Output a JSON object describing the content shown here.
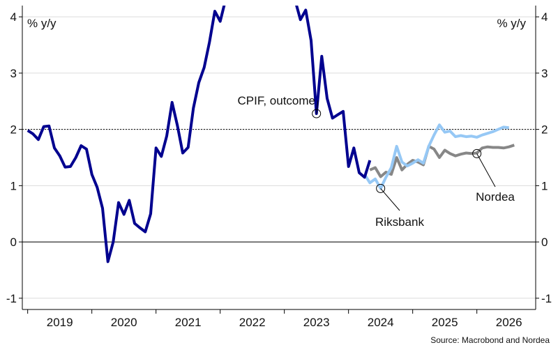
{
  "chart_data": {
    "type": "line",
    "ylabel_left": "% y/y",
    "ylabel_right": "% y/y",
    "ylim": [
      -1.2,
      4.2
    ],
    "yticks": [
      -1,
      0,
      1,
      2,
      3,
      4
    ],
    "ytick_labels": [
      "-1",
      "0",
      "1",
      "2",
      "3",
      "4"
    ],
    "xlim": [
      "2018-12",
      "2026-12"
    ],
    "xtick_labels": [
      "2019",
      "2020",
      "2021",
      "2022",
      "2023",
      "2024",
      "2025",
      "2026"
    ],
    "reference_line": 2,
    "source": "Source: Macrobond and Nordea",
    "annotations": {
      "outcome": "CPIF, outcome",
      "riksbank": "Riksbank",
      "nordea": "Nordea"
    },
    "series": [
      {
        "name": "CPIF, outcome",
        "color": "#00008f",
        "points": [
          [
            "2019-01",
            1.98
          ],
          [
            "2019-02",
            1.92
          ],
          [
            "2019-03",
            1.82
          ],
          [
            "2019-04",
            2.05
          ],
          [
            "2019-05",
            2.06
          ],
          [
            "2019-06",
            1.67
          ],
          [
            "2019-07",
            1.53
          ],
          [
            "2019-08",
            1.33
          ],
          [
            "2019-09",
            1.34
          ],
          [
            "2019-10",
            1.5
          ],
          [
            "2019-11",
            1.71
          ],
          [
            "2019-12",
            1.65
          ],
          [
            "2020-01",
            1.2
          ],
          [
            "2020-02",
            0.97
          ],
          [
            "2020-03",
            0.6
          ],
          [
            "2020-04",
            -0.35
          ],
          [
            "2020-05",
            0.0
          ],
          [
            "2020-06",
            0.7
          ],
          [
            "2020-07",
            0.49
          ],
          [
            "2020-08",
            0.74
          ],
          [
            "2020-09",
            0.33
          ],
          [
            "2020-10",
            0.25
          ],
          [
            "2020-11",
            0.18
          ],
          [
            "2020-12",
            0.5
          ],
          [
            "2021-01",
            1.67
          ],
          [
            "2021-02",
            1.52
          ],
          [
            "2021-03",
            1.88
          ],
          [
            "2021-04",
            2.48
          ],
          [
            "2021-05",
            2.07
          ],
          [
            "2021-06",
            1.58
          ],
          [
            "2021-07",
            1.68
          ],
          [
            "2021-08",
            2.38
          ],
          [
            "2021-09",
            2.83
          ],
          [
            "2021-10",
            3.1
          ],
          [
            "2021-11",
            3.55
          ],
          [
            "2021-12",
            4.1
          ],
          [
            "2022-01",
            3.92
          ],
          [
            "2022-02",
            4.3
          ],
          [
            "2023-03",
            4.3
          ],
          [
            "2023-04",
            3.95
          ],
          [
            "2023-05",
            4.12
          ],
          [
            "2023-06",
            3.58
          ],
          [
            "2023-07",
            2.28
          ],
          [
            "2023-08",
            3.3
          ],
          [
            "2023-09",
            2.55
          ],
          [
            "2023-10",
            2.2
          ],
          [
            "2023-11",
            2.26
          ],
          [
            "2023-12",
            2.32
          ],
          [
            "2024-01",
            1.34
          ],
          [
            "2024-02",
            1.67
          ],
          [
            "2024-03",
            1.23
          ],
          [
            "2024-04",
            1.15
          ],
          [
            "2024-05",
            1.45
          ]
        ]
      },
      {
        "name": "Riksbank",
        "color": "#96c8f5",
        "points": [
          [
            "2024-04",
            1.2
          ],
          [
            "2024-05",
            1.05
          ],
          [
            "2024-06",
            1.12
          ],
          [
            "2024-07",
            0.95
          ],
          [
            "2024-08",
            1.15
          ],
          [
            "2024-09",
            1.32
          ],
          [
            "2024-10",
            1.7
          ],
          [
            "2024-11",
            1.42
          ],
          [
            "2024-12",
            1.35
          ],
          [
            "2025-01",
            1.4
          ],
          [
            "2025-02",
            1.46
          ],
          [
            "2025-03",
            1.4
          ],
          [
            "2025-04",
            1.7
          ],
          [
            "2025-05",
            1.9
          ],
          [
            "2025-06",
            2.08
          ],
          [
            "2025-07",
            1.95
          ],
          [
            "2025-08",
            1.97
          ],
          [
            "2025-09",
            1.87
          ],
          [
            "2025-10",
            1.89
          ],
          [
            "2025-11",
            1.87
          ],
          [
            "2025-12",
            1.88
          ],
          [
            "2026-01",
            1.86
          ],
          [
            "2026-02",
            1.9
          ],
          [
            "2026-03",
            1.93
          ],
          [
            "2026-04",
            1.96
          ],
          [
            "2026-05",
            2.0
          ],
          [
            "2026-06",
            2.04
          ],
          [
            "2026-07",
            2.03
          ]
        ]
      },
      {
        "name": "Nordea",
        "color": "#878787",
        "points": [
          [
            "2024-05",
            1.28
          ],
          [
            "2024-06",
            1.32
          ],
          [
            "2024-07",
            1.16
          ],
          [
            "2024-08",
            1.24
          ],
          [
            "2024-09",
            1.2
          ],
          [
            "2024-10",
            1.5
          ],
          [
            "2024-11",
            1.28
          ],
          [
            "2024-12",
            1.38
          ],
          [
            "2025-01",
            1.45
          ],
          [
            "2025-02",
            1.42
          ],
          [
            "2025-03",
            1.37
          ],
          [
            "2025-04",
            1.7
          ],
          [
            "2025-05",
            1.65
          ],
          [
            "2025-06",
            1.5
          ],
          [
            "2025-07",
            1.63
          ],
          [
            "2025-08",
            1.57
          ],
          [
            "2025-09",
            1.53
          ],
          [
            "2025-10",
            1.56
          ],
          [
            "2025-11",
            1.58
          ],
          [
            "2025-12",
            1.57
          ],
          [
            "2026-01",
            1.58
          ],
          [
            "2026-02",
            1.67
          ],
          [
            "2026-03",
            1.69
          ],
          [
            "2026-04",
            1.68
          ],
          [
            "2026-05",
            1.68
          ],
          [
            "2026-06",
            1.67
          ],
          [
            "2026-07",
            1.69
          ],
          [
            "2026-08",
            1.72
          ]
        ]
      }
    ]
  }
}
